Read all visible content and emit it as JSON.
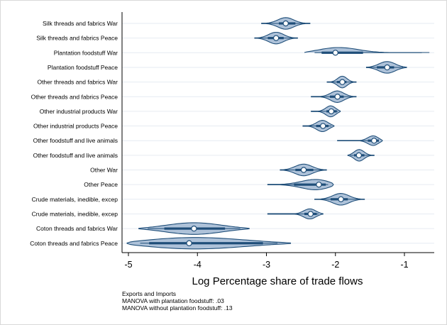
{
  "chart_data": {
    "type": "violin",
    "title": "",
    "xlabel": "Log Percentage share of trade flows",
    "ylabel": "",
    "xlim": [
      -5.1,
      -0.57
    ],
    "xticks": [
      -5,
      -4,
      -3,
      -2,
      -1
    ],
    "xtick_labels": [
      "-5",
      "-4",
      "-3",
      "-2",
      "-1"
    ],
    "grid": true,
    "colors": {
      "fill": "#aec2d9",
      "edge": "#1f4e79",
      "box": "#1f4e79",
      "median_fill": "#ffffff",
      "grid": "#e6ebf2"
    },
    "categories": [
      {
        "label": "Silk threads and fabrics War",
        "min": -3.07,
        "max": -2.37,
        "q1": -2.82,
        "q3": -2.58,
        "median": -2.72
      },
      {
        "label": "Silk threads and fabrics Peace",
        "min": -3.17,
        "max": -2.55,
        "q1": -2.98,
        "q3": -2.75,
        "median": -2.86
      },
      {
        "label": "Plantation foodstuff War",
        "min": -2.45,
        "max": -0.6,
        "q1": -2.2,
        "q3": -1.6,
        "median": -2.0
      },
      {
        "label": "Plantation foodstuff Peace",
        "min": -1.55,
        "max": -0.97,
        "q1": -1.4,
        "q3": -1.15,
        "median": -1.25
      },
      {
        "label": "Other threads and fabrics War",
        "min": -2.12,
        "max": -1.7,
        "q1": -1.98,
        "q3": -1.84,
        "median": -1.9
      },
      {
        "label": "Other threads and fabrics Peace",
        "min": -2.35,
        "max": -1.7,
        "q1": -2.08,
        "q3": -1.88,
        "median": -1.97
      },
      {
        "label": "Other industrial products War",
        "min": -2.35,
        "max": -1.93,
        "q1": -2.13,
        "q3": -1.98,
        "median": -2.06
      },
      {
        "label": "Other industrial products Peace",
        "min": -2.47,
        "max": -2.02,
        "q1": -2.28,
        "q3": -2.1,
        "median": -2.18
      },
      {
        "label": "Other foodstuff and live animals",
        "min": -1.97,
        "max": -1.32,
        "q1": -1.53,
        "q3": -1.37,
        "median": -1.44
      },
      {
        "label": "Other foodstuff and live animals",
        "min": -1.82,
        "max": -1.44,
        "q1": -1.73,
        "q3": -1.58,
        "median": -1.66
      },
      {
        "label": "Other War",
        "min": -2.8,
        "max": -2.13,
        "q1": -2.58,
        "q3": -2.32,
        "median": -2.46
      },
      {
        "label": "Other Peace",
        "min": -2.98,
        "max": -2.03,
        "q1": -2.6,
        "q3": -2.14,
        "median": -2.24
      },
      {
        "label": "Crude materials, inedible, excep",
        "min": -2.3,
        "max": -1.58,
        "q1": -2.07,
        "q3": -1.82,
        "median": -1.92
      },
      {
        "label": "Crude materials, inedible, excep",
        "min": -2.98,
        "max": -2.18,
        "q1": -2.45,
        "q3": -2.27,
        "median": -2.36
      },
      {
        "label": "Coton threads and fabrics War",
        "min": -4.85,
        "max": -3.25,
        "q1": -4.48,
        "q3": -3.6,
        "median": -4.05
      },
      {
        "label": "Coton threads and fabrics Peace",
        "min": -5.02,
        "max": -2.65,
        "q1": -4.7,
        "q3": -3.05,
        "median": -4.12
      }
    ]
  },
  "note": {
    "line1": "Exports and Imports",
    "line2": "MANOVA with plantation foodstuff: .03",
    "line3": "MANOVA without plantation foodstuff: .13"
  }
}
